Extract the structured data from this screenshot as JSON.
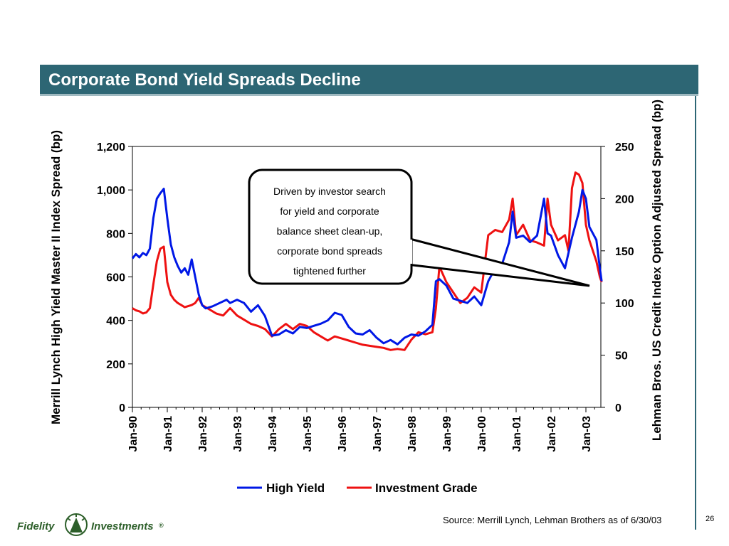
{
  "slide": {
    "title": "Corporate Bond Yield Spreads Decline",
    "source": "Source:  Merrill Lynch, Lehman Brothers as of 6/30/03",
    "page_number": "26",
    "logo": {
      "left": "Fidelity",
      "right": "Investments",
      "mark": "®"
    }
  },
  "colors": {
    "title_bar": "#2d6674",
    "high_yield": "#0018e6",
    "investment_grade": "#ee1111"
  },
  "chart_data": {
    "type": "line",
    "title": "",
    "x_tick_labels": [
      "Jan-90",
      "Jan-91",
      "Jan-92",
      "Jan-93",
      "Jan-94",
      "Jan-95",
      "Jan-96",
      "Jan-97",
      "Jan-98",
      "Jan-99",
      "Jan-00",
      "Jan-01",
      "Jan-02",
      "Jan-03"
    ],
    "x_range": [
      1990.0,
      2003.5
    ],
    "ylabel_left": "Merrill Lynch High Yield Master II Index Spread (bp)",
    "ylabel_right": "Lehman Bros. US Credit Index Option Adjusted Spread (bp)",
    "y_left": {
      "range": [
        0,
        1200
      ],
      "ticks": [
        "0",
        "200",
        "400",
        "600",
        "800",
        "1,000",
        "1,200"
      ],
      "tick_values": [
        0,
        200,
        400,
        600,
        800,
        1000,
        1200
      ]
    },
    "y_right": {
      "range": [
        0,
        250
      ],
      "ticks": [
        "0",
        "50",
        "100",
        "150",
        "200",
        "250"
      ],
      "tick_values": [
        0,
        50,
        100,
        150,
        200,
        250
      ]
    },
    "legend_position": "bottom",
    "grid": false,
    "annotation": {
      "lines": [
        "Driven by investor search",
        "for yield and corporate",
        "balance sheet clean-up,",
        "corporate bond spreads",
        "tightened further"
      ]
    },
    "series": [
      {
        "name": "High Yield",
        "axis": "left",
        "x": [
          1990.0,
          1990.1,
          1990.2,
          1990.3,
          1990.4,
          1990.5,
          1990.6,
          1990.7,
          1990.8,
          1990.9,
          1991.0,
          1991.1,
          1991.2,
          1991.3,
          1991.4,
          1991.5,
          1991.6,
          1991.7,
          1991.8,
          1991.9,
          1992.0,
          1992.1,
          1992.3,
          1992.5,
          1992.7,
          1992.8,
          1993.0,
          1993.2,
          1993.4,
          1993.6,
          1993.8,
          1994.0,
          1994.2,
          1994.4,
          1994.6,
          1994.8,
          1995.0,
          1995.2,
          1995.4,
          1995.6,
          1995.8,
          1996.0,
          1996.2,
          1996.4,
          1996.6,
          1996.8,
          1997.0,
          1997.2,
          1997.4,
          1997.6,
          1997.8,
          1998.0,
          1998.2,
          1998.4,
          1998.6,
          1998.7,
          1998.8,
          1999.0,
          1999.2,
          1999.4,
          1999.6,
          1999.8,
          2000.0,
          2000.2,
          2000.4,
          2000.6,
          2000.8,
          2000.9,
          2001.0,
          2001.2,
          2001.4,
          2001.6,
          2001.8,
          2001.9,
          2002.0,
          2002.2,
          2002.4,
          2002.6,
          2002.8,
          2002.9,
          2003.0,
          2003.1,
          2003.2,
          2003.3,
          2003.4,
          2003.45
        ],
        "values": [
          685,
          705,
          690,
          710,
          700,
          730,
          870,
          960,
          985,
          1005,
          870,
          750,
          690,
          650,
          620,
          640,
          610,
          680,
          600,
          520,
          470,
          455,
          465,
          480,
          495,
          480,
          495,
          480,
          440,
          470,
          420,
          330,
          335,
          355,
          340,
          370,
          365,
          375,
          385,
          400,
          435,
          425,
          370,
          340,
          335,
          355,
          320,
          295,
          310,
          290,
          320,
          335,
          330,
          350,
          380,
          580,
          590,
          560,
          500,
          490,
          480,
          510,
          470,
          580,
          640,
          660,
          760,
          900,
          780,
          790,
          760,
          790,
          960,
          800,
          790,
          700,
          640,
          780,
          900,
          1000,
          960,
          830,
          800,
          770,
          640,
          580
        ]
      },
      {
        "name": "Investment Grade",
        "axis": "right",
        "x": [
          1990.0,
          1990.1,
          1990.2,
          1990.3,
          1990.4,
          1990.5,
          1990.6,
          1990.7,
          1990.8,
          1990.9,
          1991.0,
          1991.1,
          1991.2,
          1991.3,
          1991.4,
          1991.5,
          1991.6,
          1991.7,
          1991.8,
          1991.9,
          1992.0,
          1992.2,
          1992.4,
          1992.6,
          1992.8,
          1993.0,
          1993.2,
          1993.4,
          1993.6,
          1993.8,
          1994.0,
          1994.2,
          1994.4,
          1994.6,
          1994.8,
          1995.0,
          1995.2,
          1995.4,
          1995.6,
          1995.8,
          1996.0,
          1996.2,
          1996.4,
          1996.6,
          1996.8,
          1997.0,
          1997.2,
          1997.4,
          1997.6,
          1997.8,
          1998.0,
          1998.2,
          1998.4,
          1998.6,
          1998.7,
          1998.8,
          1999.0,
          1999.2,
          1999.4,
          1999.6,
          1999.8,
          2000.0,
          2000.2,
          2000.4,
          2000.6,
          2000.8,
          2000.9,
          2001.0,
          2001.2,
          2001.4,
          2001.6,
          2001.8,
          2001.9,
          2002.0,
          2002.2,
          2002.4,
          2002.5,
          2002.6,
          2002.7,
          2002.8,
          2002.9,
          2003.0,
          2003.1,
          2003.2,
          2003.3,
          2003.4,
          2003.45
        ],
        "values": [
          95,
          93,
          92,
          90,
          91,
          95,
          118,
          140,
          152,
          154,
          120,
          108,
          103,
          100,
          98,
          96,
          97,
          98,
          100,
          105,
          98,
          94,
          90,
          88,
          95,
          88,
          84,
          80,
          78,
          75,
          68,
          75,
          80,
          75,
          80,
          78,
          72,
          68,
          64,
          68,
          66,
          64,
          62,
          60,
          59,
          58,
          57,
          55,
          56,
          55,
          65,
          72,
          70,
          72,
          95,
          135,
          120,
          110,
          100,
          105,
          115,
          110,
          165,
          170,
          168,
          180,
          200,
          165,
          175,
          160,
          158,
          155,
          200,
          175,
          160,
          165,
          150,
          210,
          225,
          223,
          215,
          175,
          160,
          150,
          140,
          125,
          120
        ]
      }
    ]
  }
}
